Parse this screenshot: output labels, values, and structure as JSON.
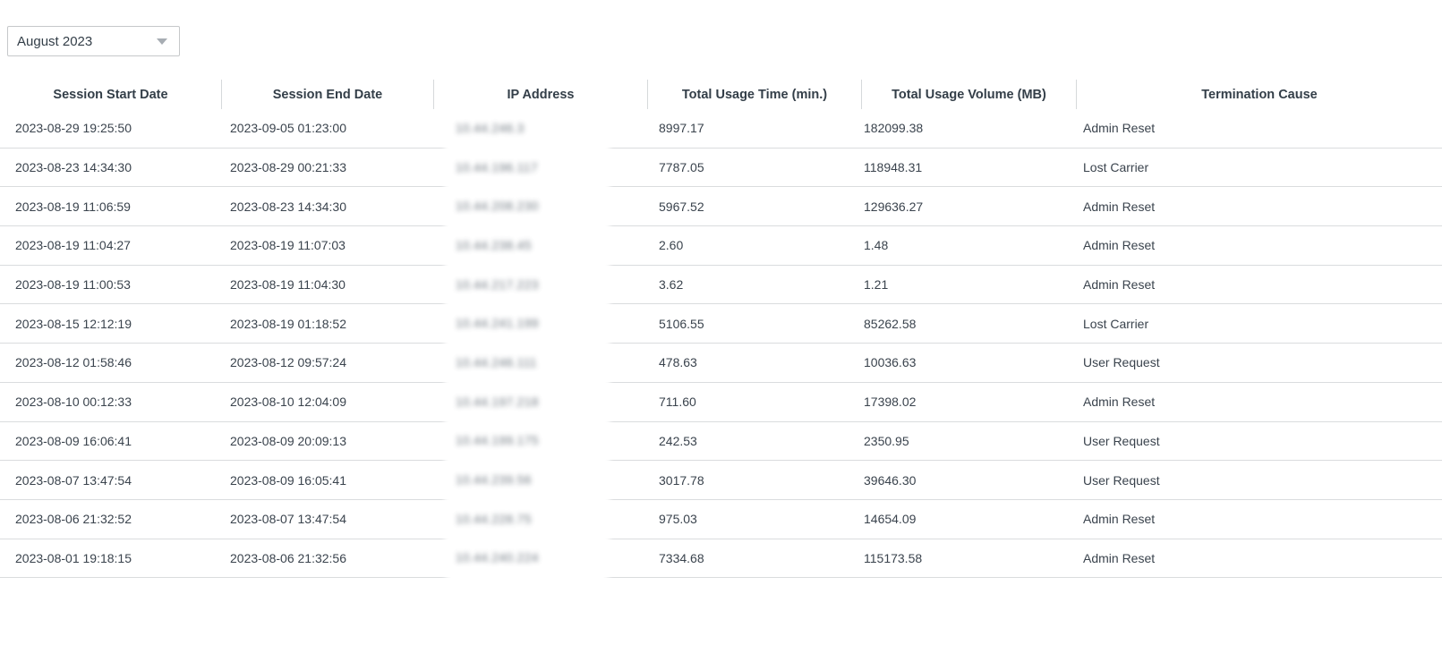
{
  "filters": {
    "month_select": {
      "value": "August 2023",
      "icon": "chevron-down-icon"
    }
  },
  "table": {
    "ip_column_masked": true,
    "columns": [
      "Session Start Date",
      "Session End Date",
      "IP Address",
      "Total Usage Time (min.)",
      "Total Usage Volume (MB)",
      "Termination Cause"
    ],
    "rows": [
      {
        "start": "2023-08-29 19:25:50",
        "end": "2023-09-05 01:23:00",
        "ip_masked": "10.44.246.3",
        "time": "8997.17",
        "volume": "182099.38",
        "cause": "Admin Reset"
      },
      {
        "start": "2023-08-23 14:34:30",
        "end": "2023-08-29 00:21:33",
        "ip_masked": "10.44.196.117",
        "time": "7787.05",
        "volume": "118948.31",
        "cause": "Lost Carrier"
      },
      {
        "start": "2023-08-19 11:06:59",
        "end": "2023-08-23 14:34:30",
        "ip_masked": "10.44.208.230",
        "time": "5967.52",
        "volume": "129636.27",
        "cause": "Admin Reset"
      },
      {
        "start": "2023-08-19 11:04:27",
        "end": "2023-08-19 11:07:03",
        "ip_masked": "10.44.238.45",
        "time": "2.60",
        "volume": "1.48",
        "cause": "Admin Reset"
      },
      {
        "start": "2023-08-19 11:00:53",
        "end": "2023-08-19 11:04:30",
        "ip_masked": "10.44.217.223",
        "time": "3.62",
        "volume": "1.21",
        "cause": "Admin Reset"
      },
      {
        "start": "2023-08-15 12:12:19",
        "end": "2023-08-19 01:18:52",
        "ip_masked": "10.44.241.199",
        "time": "5106.55",
        "volume": "85262.58",
        "cause": "Lost Carrier"
      },
      {
        "start": "2023-08-12 01:58:46",
        "end": "2023-08-12 09:57:24",
        "ip_masked": "10.44.246.111",
        "time": "478.63",
        "volume": "10036.63",
        "cause": "User Request"
      },
      {
        "start": "2023-08-10 00:12:33",
        "end": "2023-08-10 12:04:09",
        "ip_masked": "10.44.197.218",
        "time": "711.60",
        "volume": "17398.02",
        "cause": "Admin Reset"
      },
      {
        "start": "2023-08-09 16:06:41",
        "end": "2023-08-09 20:09:13",
        "ip_masked": "10.44.199.175",
        "time": "242.53",
        "volume": "2350.95",
        "cause": "User Request"
      },
      {
        "start": "2023-08-07 13:47:54",
        "end": "2023-08-09 16:05:41",
        "ip_masked": "10.44.239.56",
        "time": "3017.78",
        "volume": "39646.30",
        "cause": "User Request"
      },
      {
        "start": "2023-08-06 21:32:52",
        "end": "2023-08-07 13:47:54",
        "ip_masked": "10.44.228.75",
        "time": "975.03",
        "volume": "14654.09",
        "cause": "Admin Reset"
      },
      {
        "start": "2023-08-01 19:18:15",
        "end": "2023-08-06 21:32:56",
        "ip_masked": "10.44.240.224",
        "time": "7334.68",
        "volume": "115173.58",
        "cause": "Admin Reset"
      }
    ]
  },
  "colors": {
    "text": "#3a434d",
    "header_text": "#333e48",
    "row_separator": "#dadcde",
    "dropdown_border": "#c6c8ca"
  }
}
